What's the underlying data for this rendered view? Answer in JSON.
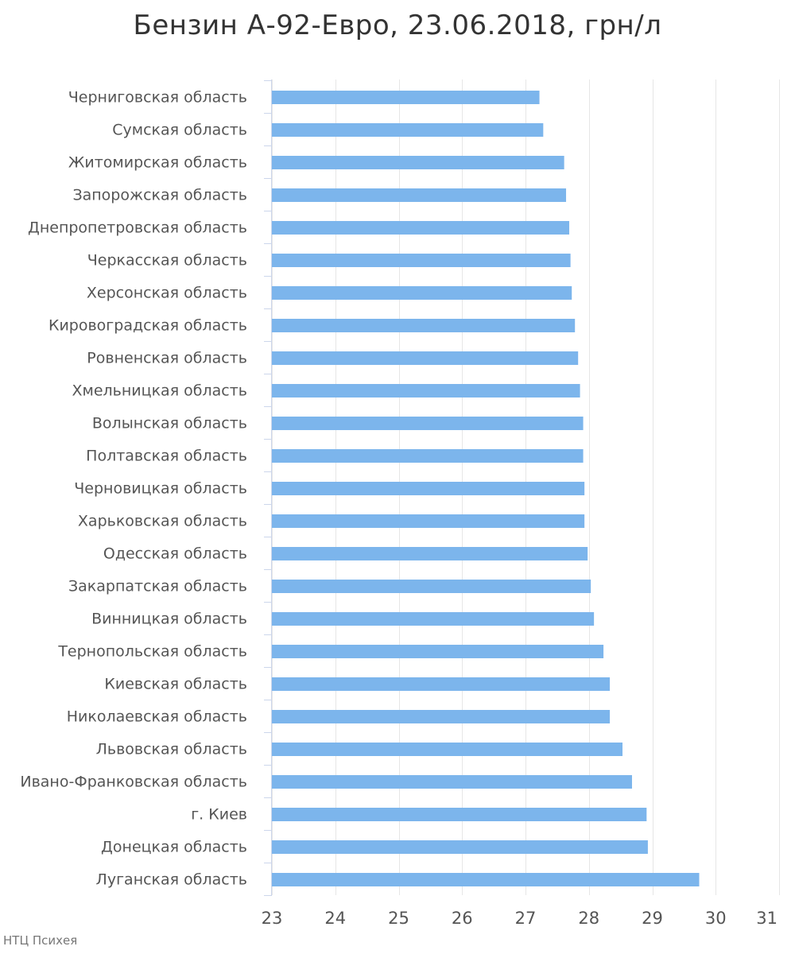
{
  "chart_data": {
    "type": "bar",
    "orientation": "horizontal",
    "title": "Бензин А-92-Евро, 23.06.2018, грн/л",
    "xlabel": "",
    "ylabel": "",
    "xlim": [
      23,
      31
    ],
    "xticks": [
      "23",
      "24",
      "25",
      "26",
      "27",
      "28",
      "29",
      "30",
      "31"
    ],
    "grid": true,
    "legend": "none",
    "bar_color": "#7cb5ec",
    "categories": [
      "Черниговская область",
      "Сумская область",
      "Житомирская область",
      "Запорожская область",
      "Днепропетровская область",
      "Черкасская область",
      "Херсонская область",
      "Кировоградская область",
      "Ровненская область",
      "Хмельницкая область",
      "Волынская область",
      "Полтавская область",
      "Черновицкая область",
      "Харьковская область",
      "Одесская область",
      "Закарпатская область",
      "Винницкая область",
      "Тернопольская область",
      "Киевская область",
      "Николаевская область",
      "Львовская область",
      "Ивано-Франковская область",
      "г. Киев",
      "Донецкая область",
      "Луганская область"
    ],
    "values": [
      27.22,
      27.28,
      27.61,
      27.64,
      27.69,
      27.71,
      27.73,
      27.78,
      27.83,
      27.86,
      27.91,
      27.91,
      27.93,
      27.93,
      27.98,
      28.03,
      28.08,
      28.23,
      28.33,
      28.33,
      28.53,
      28.68,
      28.91,
      28.93,
      29.74
    ]
  },
  "credit": "НТЦ Психея"
}
